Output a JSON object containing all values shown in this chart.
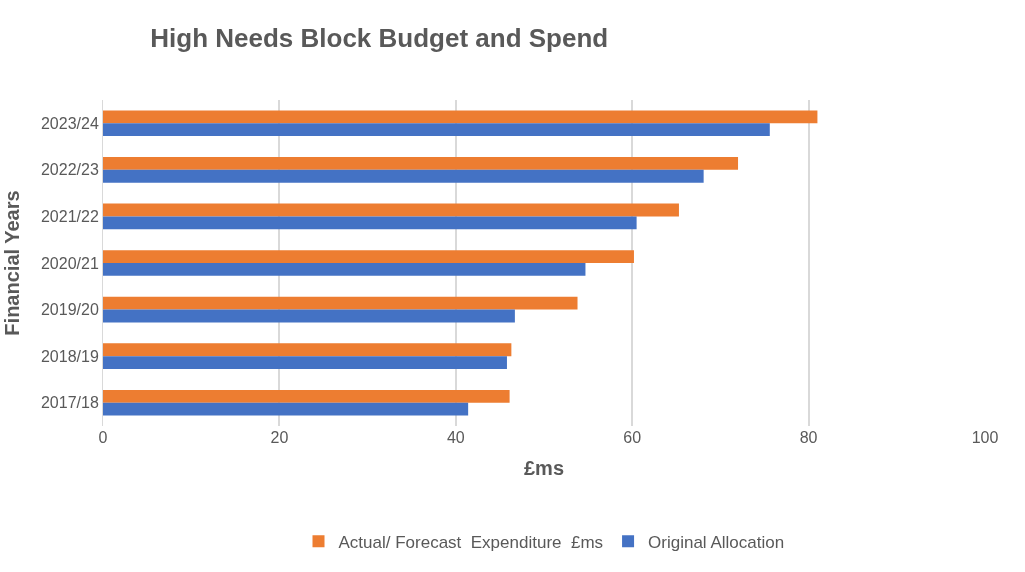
{
  "chart_data": {
    "type": "bar",
    "orientation": "horizontal",
    "title": "High Needs Block Budget and Spend",
    "xlabel": "£ms",
    "ylabel": "Financial Years",
    "categories": [
      "2023/24",
      "2022/23",
      "2021/22",
      "2020/21",
      "2019/20",
      "2018/19",
      "2017/18"
    ],
    "series": [
      {
        "name": "Actual/ Forecast  Expenditure  £ms",
        "color": "#ed7d31",
        "values": [
          81.0,
          72.0,
          65.3,
          60.2,
          53.8,
          46.3,
          46.1
        ]
      },
      {
        "name": "Original Allocation",
        "color": "#4472c4",
        "values": [
          75.6,
          68.1,
          60.5,
          54.7,
          46.7,
          45.8,
          41.4
        ]
      }
    ],
    "xlim": [
      0,
      100
    ],
    "xticks": [
      0,
      20,
      40,
      60,
      80,
      100
    ],
    "grid": "x",
    "legend": "bottom"
  }
}
